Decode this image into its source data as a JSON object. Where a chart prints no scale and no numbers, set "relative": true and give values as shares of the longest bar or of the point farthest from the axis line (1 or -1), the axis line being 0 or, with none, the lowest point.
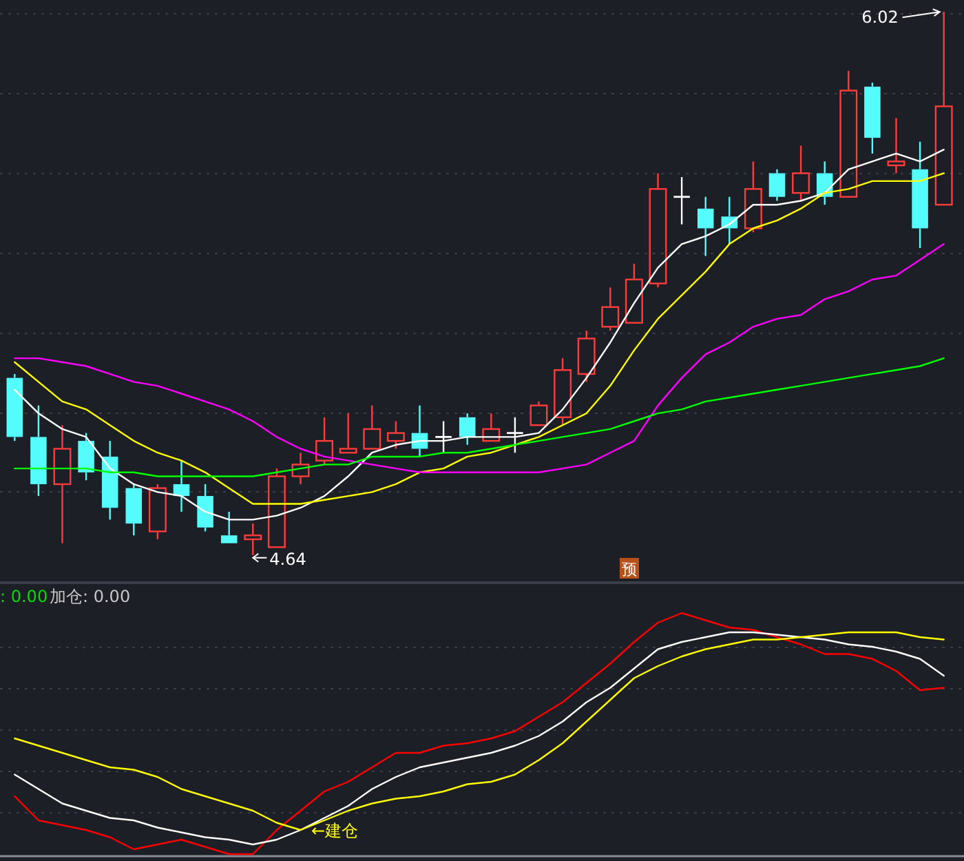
{
  "chart_data": [
    {
      "type": "candlestick",
      "categories": [
        null,
        null,
        null,
        null,
        null,
        null,
        null,
        null,
        null,
        null,
        null,
        null,
        null,
        null,
        null,
        null,
        null,
        null,
        null,
        null,
        null,
        null,
        null,
        null,
        null,
        null,
        null,
        null,
        null,
        null,
        null,
        null,
        null,
        null,
        null,
        null,
        null,
        null,
        null,
        null
      ],
      "ohlc": [
        [
          5.09,
          5.1,
          4.93,
          4.94
        ],
        [
          4.94,
          5.02,
          4.79,
          4.82
        ],
        [
          4.82,
          4.97,
          4.67,
          4.91
        ],
        [
          4.93,
          4.95,
          4.83,
          4.85
        ],
        [
          4.89,
          4.93,
          4.73,
          4.76
        ],
        [
          4.81,
          4.82,
          4.69,
          4.72
        ],
        [
          4.7,
          4.82,
          4.68,
          4.81
        ],
        [
          4.82,
          4.88,
          4.75,
          4.79
        ],
        [
          4.79,
          4.82,
          4.7,
          4.71
        ],
        [
          4.69,
          4.75,
          4.67,
          4.67
        ],
        [
          4.68,
          4.72,
          4.64,
          4.69
        ],
        [
          4.66,
          4.86,
          4.66,
          4.84
        ],
        [
          4.84,
          4.9,
          4.82,
          4.87
        ],
        [
          4.88,
          4.99,
          4.87,
          4.93
        ],
        [
          4.9,
          5.0,
          4.9,
          4.91
        ],
        [
          4.91,
          5.02,
          4.91,
          4.96
        ],
        [
          4.93,
          4.98,
          4.91,
          4.95
        ],
        [
          4.95,
          5.02,
          4.89,
          4.91
        ],
        [
          4.94,
          4.98,
          4.9,
          4.94
        ],
        [
          4.99,
          5.0,
          4.92,
          4.94
        ],
        [
          4.93,
          5.0,
          4.93,
          4.96
        ],
        [
          4.95,
          4.99,
          4.9,
          4.95
        ],
        [
          4.97,
          5.03,
          4.97,
          5.02
        ],
        [
          4.99,
          5.14,
          4.97,
          5.11
        ],
        [
          5.1,
          5.21,
          5.08,
          5.19
        ],
        [
          5.22,
          5.32,
          5.21,
          5.27
        ],
        [
          5.23,
          5.38,
          5.23,
          5.34
        ],
        [
          5.33,
          5.61,
          5.32,
          5.57
        ],
        [
          5.55,
          5.6,
          5.48,
          5.55
        ],
        [
          5.52,
          5.55,
          5.4,
          5.47
        ],
        [
          5.5,
          5.55,
          5.43,
          5.47
        ],
        [
          5.47,
          5.64,
          5.46,
          5.57
        ],
        [
          5.61,
          5.62,
          5.54,
          5.55
        ],
        [
          5.56,
          5.68,
          5.54,
          5.61
        ],
        [
          5.61,
          5.64,
          5.53,
          5.55
        ],
        [
          5.55,
          5.87,
          5.55,
          5.82
        ],
        [
          5.83,
          5.84,
          5.66,
          5.7
        ],
        [
          5.63,
          5.75,
          5.61,
          5.64
        ],
        [
          5.62,
          5.69,
          5.42,
          5.47
        ],
        [
          5.53,
          6.02,
          5.53,
          5.78
        ]
      ],
      "series": [
        {
          "type": "line",
          "color": "#ffffff",
          "values": [
            5.06,
            5.0,
            4.96,
            4.94,
            4.86,
            4.82,
            4.8,
            4.79,
            4.75,
            4.73,
            4.73,
            4.74,
            4.76,
            4.79,
            4.84,
            4.9,
            4.92,
            4.93,
            4.93,
            4.94,
            4.94,
            4.94,
            4.95,
            5.01,
            5.09,
            5.18,
            5.28,
            5.37,
            5.43,
            5.45,
            5.48,
            5.53,
            5.53,
            5.54,
            5.56,
            5.62,
            5.64,
            5.66,
            5.64,
            5.67
          ]
        },
        {
          "type": "line",
          "color": "#ffff00",
          "values": [
            5.13,
            5.08,
            5.03,
            5.01,
            4.97,
            4.93,
            4.9,
            4.88,
            4.85,
            4.81,
            4.77,
            4.77,
            4.77,
            4.78,
            4.79,
            4.8,
            4.82,
            4.85,
            4.86,
            4.89,
            4.9,
            4.92,
            4.94,
            4.97,
            5.0,
            5.07,
            5.16,
            5.24,
            5.3,
            5.36,
            5.43,
            5.47,
            5.49,
            5.52,
            5.56,
            5.57,
            5.59,
            5.59,
            5.59,
            5.61
          ]
        },
        {
          "type": "line",
          "color": "#ff00ff",
          "values": [
            5.14,
            5.14,
            5.13,
            5.12,
            5.1,
            5.08,
            5.07,
            5.05,
            5.03,
            5.01,
            4.98,
            4.94,
            4.91,
            4.89,
            4.88,
            4.87,
            4.86,
            4.85,
            4.85,
            4.85,
            4.85,
            4.85,
            4.85,
            4.86,
            4.87,
            4.9,
            4.93,
            5.02,
            5.09,
            5.15,
            5.18,
            5.22,
            5.24,
            5.25,
            5.29,
            5.31,
            5.34,
            5.35,
            5.39,
            5.43
          ]
        },
        {
          "type": "line",
          "color": "#00ff00",
          "values": [
            4.86,
            4.86,
            4.86,
            4.86,
            4.85,
            4.85,
            4.84,
            4.84,
            4.84,
            4.84,
            4.84,
            4.85,
            4.86,
            4.87,
            4.87,
            4.89,
            4.89,
            4.89,
            4.9,
            4.9,
            4.91,
            4.92,
            4.93,
            4.94,
            4.95,
            4.96,
            4.98,
            5.0,
            5.01,
            5.03,
            5.04,
            5.05,
            5.06,
            5.07,
            5.08,
            5.09,
            5.1,
            5.11,
            5.12,
            5.14
          ]
        }
      ],
      "grid": true,
      "annotations": [
        "6.02",
        "4.64",
        "预"
      ]
    },
    {
      "type": "line",
      "relative": true,
      "categories": [
        null,
        null,
        null,
        null,
        null,
        null,
        null,
        null,
        null,
        null,
        null,
        null,
        null,
        null,
        null,
        null,
        null,
        null,
        null,
        null,
        null,
        null,
        null,
        null,
        null,
        null,
        null,
        null,
        null,
        null,
        null,
        null,
        null,
        null,
        null,
        null,
        null,
        null,
        null,
        null
      ],
      "series": [
        {
          "color": "#ff0000",
          "values": [
            0.24,
            0.14,
            0.12,
            0.1,
            0.07,
            0.02,
            0.04,
            0.06,
            0.03,
            0,
            0,
            0.1,
            0.18,
            0.26,
            0.3,
            0.36,
            0.42,
            0.42,
            0.45,
            0.46,
            0.48,
            0.51,
            0.57,
            0.63,
            0.71,
            0.79,
            0.88,
            0.96,
            1,
            0.97,
            0.94,
            0.93,
            0.9,
            0.87,
            0.83,
            0.83,
            0.81,
            0.76,
            0.68,
            0.69
          ]
        },
        {
          "color": "#ffffff",
          "values": [
            0.33,
            0.27,
            0.21,
            0.18,
            0.15,
            0.14,
            0.11,
            0.09,
            0.07,
            0.06,
            0.04,
            0.06,
            0.1,
            0.15,
            0.2,
            0.27,
            0.32,
            0.36,
            0.38,
            0.4,
            0.42,
            0.45,
            0.49,
            0.55,
            0.63,
            0.69,
            0.77,
            0.85,
            0.88,
            0.9,
            0.92,
            0.92,
            0.91,
            0.9,
            0.89,
            0.87,
            0.86,
            0.84,
            0.81,
            0.74
          ]
        },
        {
          "color": "#ffff00",
          "values": [
            0.48,
            0.45,
            0.42,
            0.39,
            0.36,
            0.35,
            0.32,
            0.27,
            0.24,
            0.21,
            0.18,
            0.13,
            0.1,
            0.14,
            0.18,
            0.21,
            0.23,
            0.24,
            0.26,
            0.29,
            0.3,
            0.33,
            0.39,
            0.46,
            0.55,
            0.64,
            0.73,
            0.78,
            0.82,
            0.85,
            0.87,
            0.89,
            0.89,
            0.9,
            0.91,
            0.92,
            0.92,
            0.92,
            0.9,
            0.89
          ]
        }
      ],
      "grid": true,
      "annotations": [
        ": 0.00",
        "加仓: 0.00",
        "←建仓"
      ]
    }
  ]
}
